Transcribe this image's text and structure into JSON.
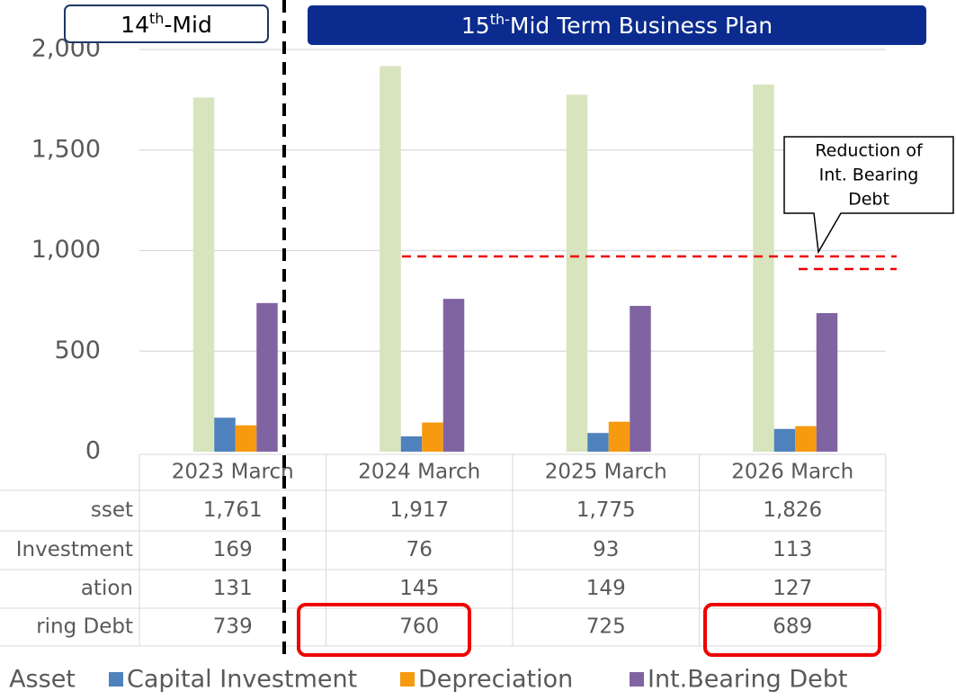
{
  "chart_data": {
    "type": "bar",
    "categories": [
      "2023 March",
      "2024 March",
      "2025 March",
      "2026 March"
    ],
    "series": [
      {
        "name": "l Asset",
        "color": "#d7e4bd",
        "values": [
          1761,
          1917,
          1775,
          1826
        ],
        "value_labels": [
          "1,761",
          "1,917",
          "1,775",
          "1,826"
        ]
      },
      {
        "name": "Capital Investment",
        "color": "#4f81bd",
        "values": [
          169,
          76,
          93,
          113
        ]
      },
      {
        "name": "Depreciation",
        "color": "#f79a10",
        "values": [
          131,
          145,
          149,
          127
        ]
      },
      {
        "name": "Int.Bearing Debt",
        "color": "#8064a2",
        "values": [
          739,
          760,
          725,
          689
        ]
      }
    ],
    "table_row_labels": [
      "sset",
      "Investment",
      "ation",
      "ring Debt"
    ],
    "ylim": [
      0,
      2000
    ],
    "yticks": [
      0,
      500,
      {
        "value": 1000,
        "label": "1,000"
      },
      {
        "value": 1500,
        "label": "1,500"
      },
      {
        "value": 2000,
        "label": "2,000"
      }
    ],
    "grid": true,
    "annotations": {
      "period_14": {
        "main": "14",
        "sup": "th",
        "rest": "-Mid"
      },
      "period_15": {
        "main": "15",
        "sup": "th-",
        "rest": "Mid Term Business Plan"
      },
      "callout": [
        "Reduction of",
        "Int. Bearing",
        "Debt"
      ]
    }
  }
}
